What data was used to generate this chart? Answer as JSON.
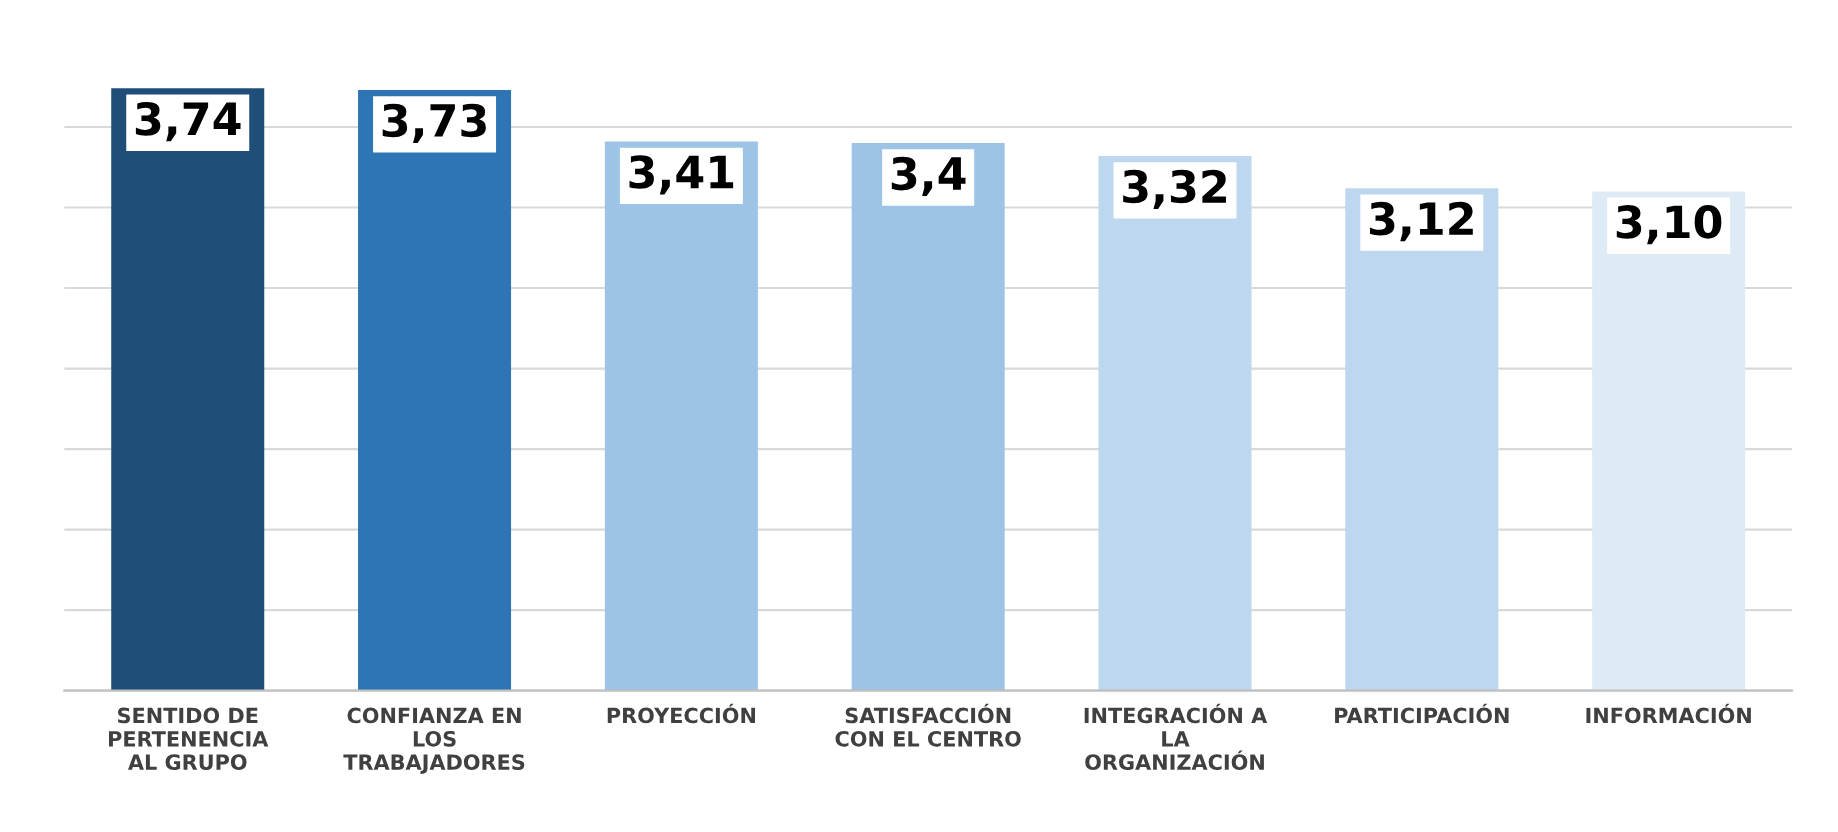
{
  "chart_data": {
    "type": "bar",
    "categories": [
      "SENTIDO DE\nPERTENENCIA\nAL GRUPO",
      "CONFIANZA EN\nLOS\nTRABAJADORES",
      "PROYECCIÓN",
      "SATISFACCIÓN\nCON EL CENTRO",
      "INTEGRACIÓN A\nLA\nORGANIZACIÓN",
      "PARTICIPACIÓN",
      "INFORMACIÓN"
    ],
    "values": [
      3.74,
      3.73,
      3.41,
      3.4,
      3.32,
      3.12,
      3.1
    ],
    "value_labels": [
      "3,74",
      "3,73",
      "3,41",
      "3,4",
      "3,32",
      "3,12",
      "3,10"
    ],
    "colors": [
      "#1f4e79",
      "#2e75b6",
      "#9dc3e6",
      "#9dc3e6",
      "#bdd7ee",
      "#bdd7ee",
      "#deebf7"
    ],
    "tick_labels": "x",
    "grid": "y"
  }
}
